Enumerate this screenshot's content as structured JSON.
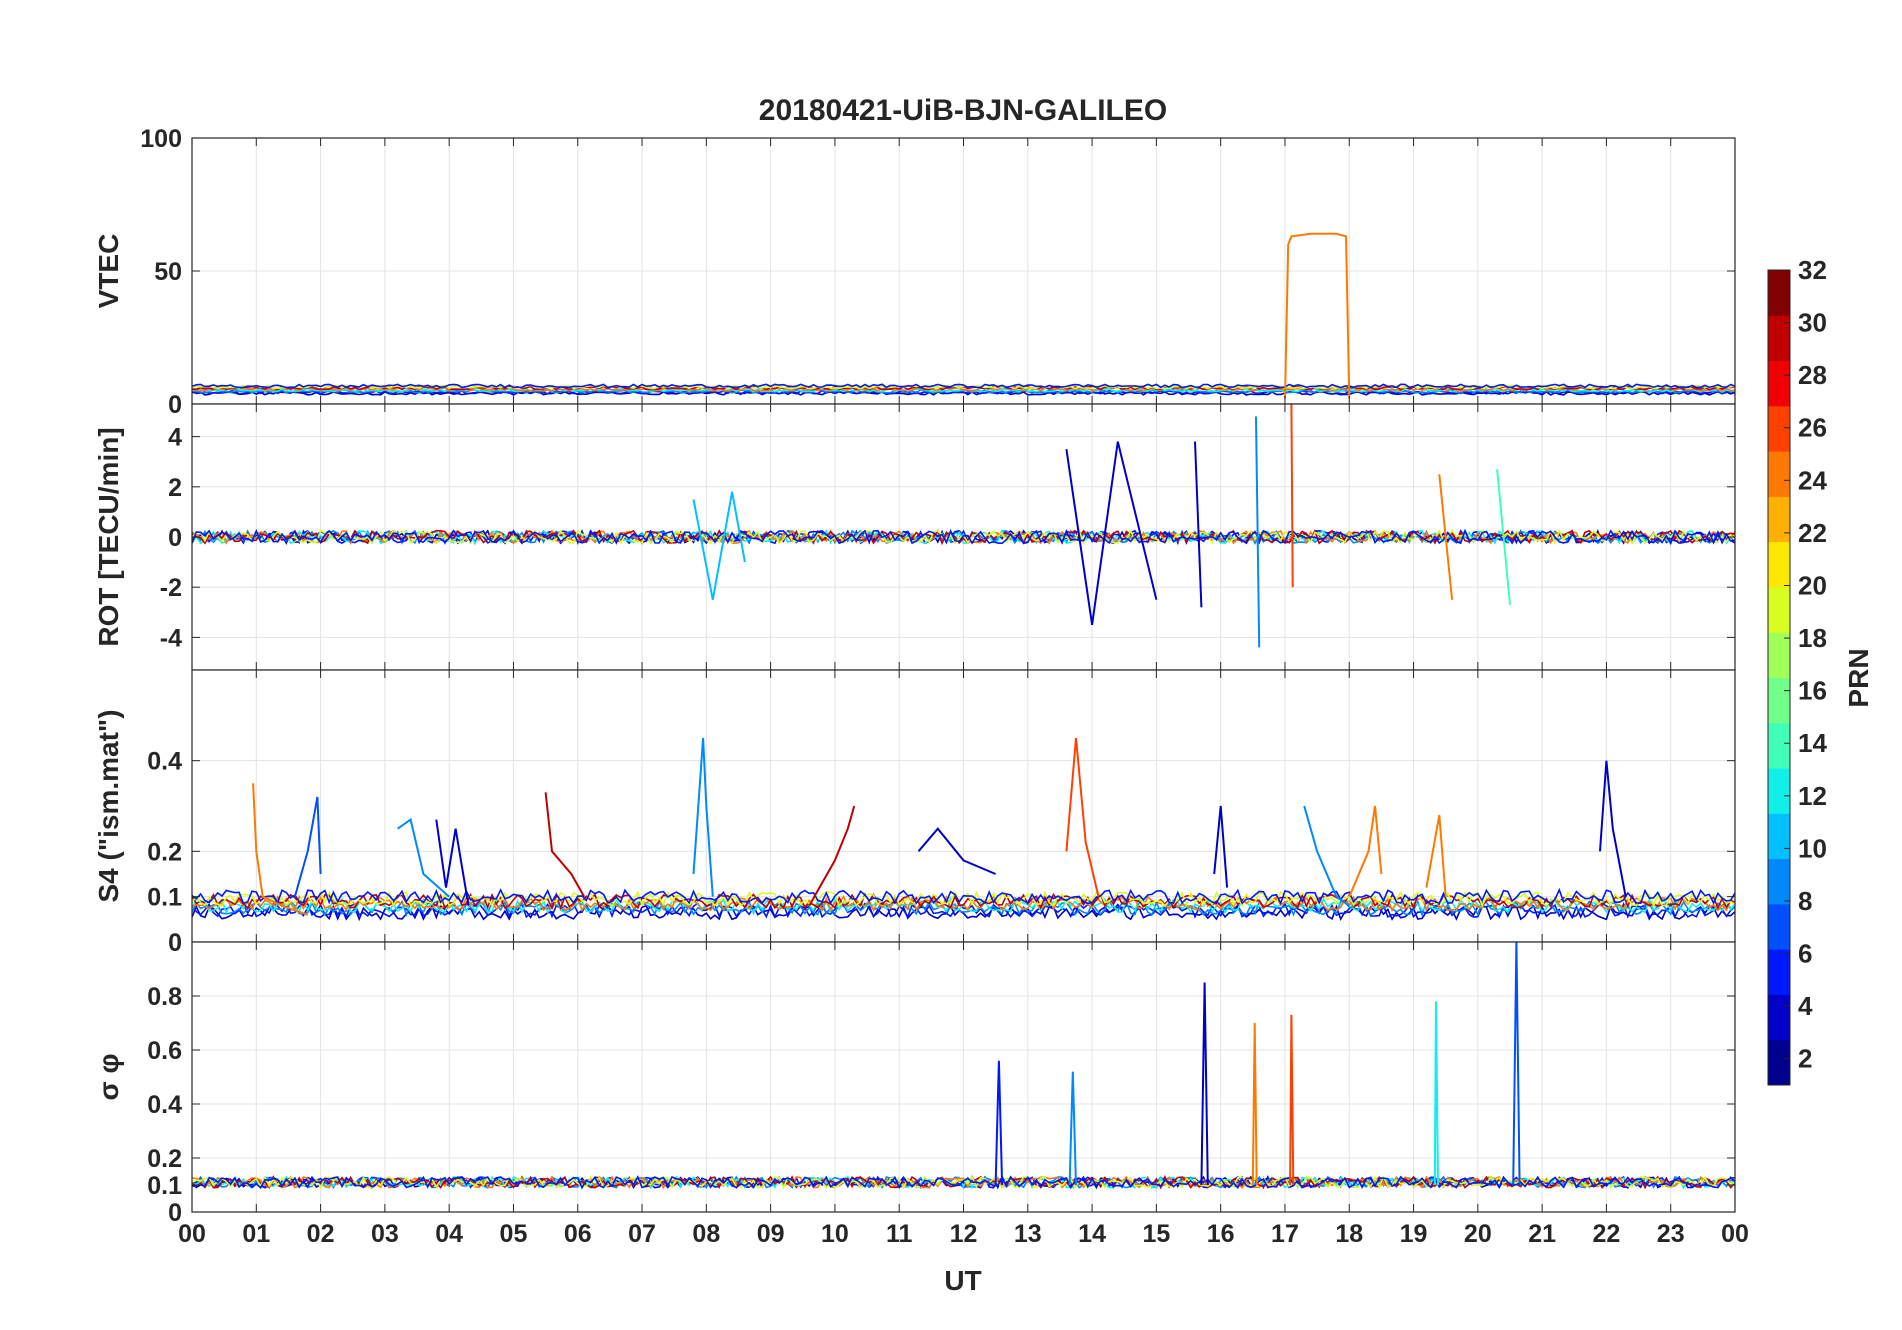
{
  "chart_data": {
    "type": "line",
    "title": "20180421-UiB-BJN-GALILEO",
    "xlabel": "UT",
    "x_tick_labels": [
      "00",
      "01",
      "02",
      "03",
      "04",
      "05",
      "06",
      "07",
      "08",
      "09",
      "10",
      "11",
      "12",
      "13",
      "14",
      "15",
      "16",
      "17",
      "18",
      "19",
      "20",
      "21",
      "22",
      "23",
      "00"
    ],
    "x_range_hours": [
      0,
      24
    ],
    "grid": true,
    "colormap": "jet",
    "colorbar": {
      "label": "PRN",
      "range": [
        1,
        32
      ],
      "tick_labels": [
        "2",
        "4",
        "6",
        "8",
        "10",
        "12",
        "14",
        "16",
        "18",
        "20",
        "22",
        "24",
        "26",
        "28",
        "30",
        "32"
      ],
      "position": "right"
    },
    "panels": [
      {
        "id": "vtec",
        "ylabel": "VTEC",
        "ylim": [
          0,
          100
        ],
        "ytick_labels": [
          "0",
          "50",
          "100"
        ],
        "ytick_values": [
          0,
          50,
          100
        ],
        "highlights": [
          {
            "prn": 24,
            "x": [
              17.0,
              17.05,
              17.1,
              17.4,
              17.8,
              17.95,
              18.0
            ],
            "y": [
              2,
              60,
              63,
              64,
              64,
              63,
              2
            ]
          }
        ]
      },
      {
        "id": "rot",
        "ylabel": "ROT [TECU/min]",
        "ylim": [
          -5.3,
          5.3
        ],
        "ytick_labels": [
          "-4",
          "-2",
          "0",
          "2",
          "4"
        ],
        "ytick_values": [
          -4,
          -2,
          0,
          2,
          4
        ],
        "highlights": [
          {
            "prn": 11,
            "x": [
              7.8,
              8.1,
              8.4,
              8.6
            ],
            "y": [
              1.5,
              -2.5,
              1.8,
              -1.0
            ]
          },
          {
            "prn": 3,
            "x": [
              13.6,
              14.0,
              14.4,
              15.0
            ],
            "y": [
              3.5,
              -3.5,
              3.8,
              -2.5
            ]
          },
          {
            "prn": 2,
            "x": [
              15.6,
              15.7
            ],
            "y": [
              3.8,
              -2.8
            ]
          },
          {
            "prn": 8,
            "x": [
              16.55,
              16.6
            ],
            "y": [
              4.8,
              -4.4
            ]
          },
          {
            "prn": 26,
            "x": [
              17.1,
              17.12
            ],
            "y": [
              5.3,
              -2.0
            ]
          },
          {
            "prn": 24,
            "x": [
              19.4,
              19.6
            ],
            "y": [
              2.5,
              -2.5
            ]
          },
          {
            "prn": 13,
            "x": [
              20.3,
              20.5
            ],
            "y": [
              2.7,
              -2.7
            ]
          }
        ]
      },
      {
        "id": "s4",
        "ylabel": "S4 (\"ism.mat\")",
        "ylim": [
          0,
          0.6
        ],
        "ytick_labels": [
          "0",
          "0.1",
          "0.2",
          "0.4"
        ],
        "ytick_values": [
          0,
          0.1,
          0.2,
          0.4
        ],
        "highlights": [
          {
            "prn": 24,
            "x": [
              0.95,
              1.0,
              1.1,
              1.4,
              1.8
            ],
            "y": [
              0.35,
              0.2,
              0.1,
              0.08,
              0.06
            ]
          },
          {
            "prn": 6,
            "x": [
              1.6,
              1.8,
              1.95,
              2.0
            ],
            "y": [
              0.1,
              0.2,
              0.32,
              0.15
            ]
          },
          {
            "prn": 8,
            "x": [
              3.2,
              3.4,
              3.6,
              4.0
            ],
            "y": [
              0.25,
              0.27,
              0.15,
              0.1
            ]
          },
          {
            "prn": 3,
            "x": [
              3.8,
              3.95,
              4.1,
              4.3
            ],
            "y": [
              0.27,
              0.12,
              0.25,
              0.08
            ]
          },
          {
            "prn": 30,
            "x": [
              5.5,
              5.6,
              5.9,
              6.1
            ],
            "y": [
              0.33,
              0.2,
              0.15,
              0.1
            ]
          },
          {
            "prn": 9,
            "x": [
              7.8,
              7.95,
              8.0,
              8.1
            ],
            "y": [
              0.15,
              0.45,
              0.3,
              0.1
            ]
          },
          {
            "prn": 30,
            "x": [
              9.6,
              10.0,
              10.2,
              10.3
            ],
            "y": [
              0.08,
              0.18,
              0.25,
              0.3
            ]
          },
          {
            "prn": 3,
            "x": [
              11.3,
              11.6,
              12.0,
              12.5
            ],
            "y": [
              0.2,
              0.25,
              0.18,
              0.15
            ]
          },
          {
            "prn": 26,
            "x": [
              13.6,
              13.75,
              13.9,
              14.1
            ],
            "y": [
              0.2,
              0.45,
              0.22,
              0.1
            ]
          },
          {
            "prn": 2,
            "x": [
              15.9,
              16.0,
              16.1
            ],
            "y": [
              0.15,
              0.3,
              0.12
            ]
          },
          {
            "prn": 9,
            "x": [
              17.3,
              17.5,
              17.8,
              18.0
            ],
            "y": [
              0.3,
              0.2,
              0.1,
              0.08
            ]
          },
          {
            "prn": 25,
            "x": [
              18.0,
              18.3,
              18.4,
              18.5
            ],
            "y": [
              0.1,
              0.2,
              0.3,
              0.15
            ]
          },
          {
            "prn": 24,
            "x": [
              19.2,
              19.4,
              19.5
            ],
            "y": [
              0.12,
              0.28,
              0.1
            ]
          },
          {
            "prn": 3,
            "x": [
              21.9,
              22.0,
              22.1,
              22.3
            ],
            "y": [
              0.2,
              0.4,
              0.25,
              0.1
            ]
          }
        ]
      },
      {
        "id": "sigma_phi",
        "ylabel": "σ φ",
        "ylim": [
          0,
          1
        ],
        "ytick_labels": [
          "0",
          "0.1",
          "0.2",
          "0.4",
          "0.6",
          "0.8"
        ],
        "ytick_values": [
          0,
          0.1,
          0.2,
          0.4,
          0.6,
          0.8
        ],
        "highlights": [
          {
            "prn": 4,
            "x": [
              12.5,
              12.55,
              12.6
            ],
            "y": [
              0.1,
              0.56,
              0.1
            ]
          },
          {
            "prn": 9,
            "x": [
              13.65,
              13.7,
              13.75
            ],
            "y": [
              0.1,
              0.52,
              0.1
            ]
          },
          {
            "prn": 2,
            "x": [
              15.7,
              15.75,
              15.8
            ],
            "y": [
              0.1,
              0.85,
              0.1
            ]
          },
          {
            "prn": 25,
            "x": [
              16.5,
              16.53,
              16.56
            ],
            "y": [
              0.1,
              0.7,
              0.1
            ]
          },
          {
            "prn": 26,
            "x": [
              17.08,
              17.1,
              17.13
            ],
            "y": [
              0.1,
              0.73,
              0.1
            ]
          },
          {
            "prn": 12,
            "x": [
              19.33,
              19.35,
              19.38
            ],
            "y": [
              0.1,
              0.78,
              0.1
            ]
          },
          {
            "prn": 6,
            "x": [
              20.55,
              20.6,
              20.65
            ],
            "y": [
              0.1,
              1.0,
              0.1
            ]
          }
        ]
      }
    ]
  }
}
